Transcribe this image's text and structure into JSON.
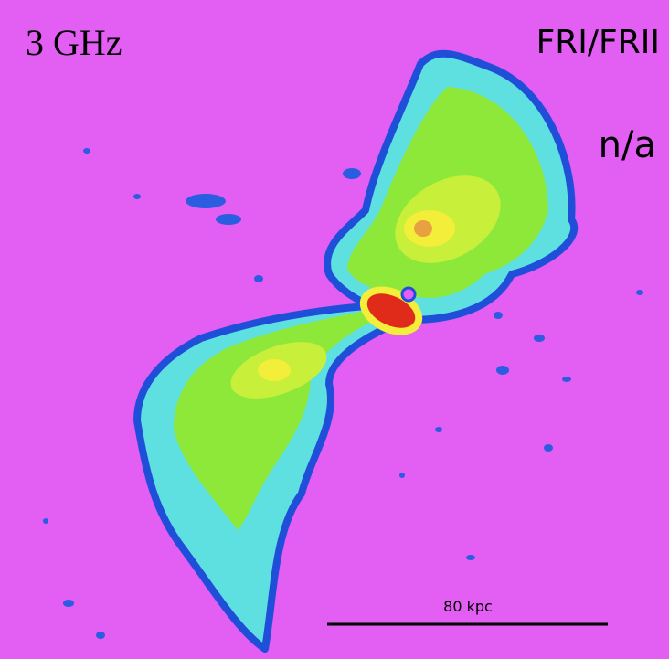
{
  "labels": {
    "frequency": "3 GHz",
    "class": "FRI/FRII",
    "note": "n/a"
  },
  "scale_bar": {
    "label": "80 kpc"
  }
}
